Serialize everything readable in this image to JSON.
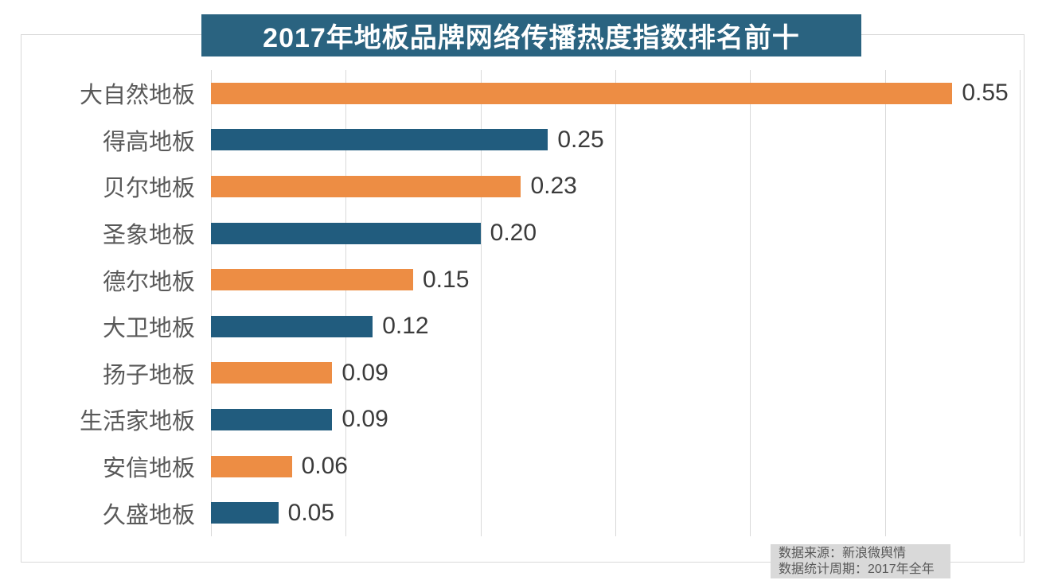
{
  "title": "2017年地板品牌网络传播热度指数排名前十",
  "colors": {
    "title_bg": "#2a6380",
    "bar_orange": "#ed8d44",
    "bar_teal": "#215c7e",
    "gridline": "#d9d9d9",
    "frame_border": "#d9d9d9",
    "category_label": "#595959",
    "value_label": "#3b3b3b",
    "note_bg": "#d9d9d9",
    "note_text": "#595959"
  },
  "source_note": {
    "line1": "数据来源：新浪微舆情",
    "line2": "数据统计周期：2017年全年"
  },
  "chart_data": {
    "type": "bar",
    "orientation": "horizontal",
    "title": "2017年地板品牌网络传播热度指数排名前十",
    "categories": [
      "大自然地板",
      "得高地板",
      "贝尔地板",
      "圣象地板",
      "德尔地板",
      "大卫地板",
      "扬子地板",
      "生活家地板",
      "安信地板",
      "久盛地板"
    ],
    "values": [
      0.55,
      0.25,
      0.23,
      0.2,
      0.15,
      0.12,
      0.09,
      0.09,
      0.06,
      0.05
    ],
    "value_labels": [
      "0.55",
      "0.25",
      "0.23",
      "0.20",
      "0.15",
      "0.12",
      "0.09",
      "0.09",
      "0.06",
      "0.05"
    ],
    "bar_color_pattern": [
      "#ed8d44",
      "#215c7e"
    ],
    "xlabel": "",
    "ylabel": "",
    "xlim": [
      0,
      0.6
    ],
    "grid_interval": 0.1,
    "grid": true,
    "legend_position": "none",
    "data_labels": true
  }
}
